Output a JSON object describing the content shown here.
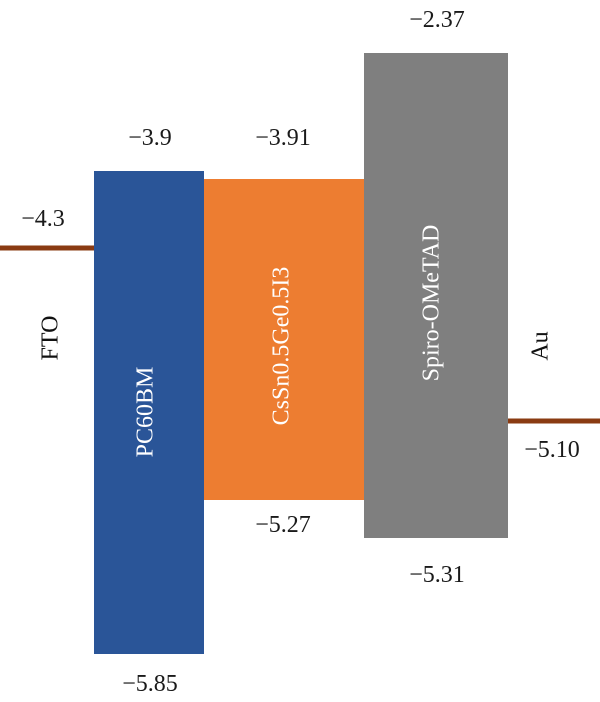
{
  "colors": {
    "electrode_line": "#8a3b12",
    "electrode_text": "#111111",
    "label_on_bar": "#ffffff"
  },
  "electrodes": [
    {
      "id": "fto",
      "name": "FTO",
      "level": "−4.3"
    },
    {
      "id": "au",
      "name": "Au",
      "level": "−5.10"
    }
  ],
  "layers": [
    {
      "id": "pc60bm",
      "name": "PC60BM",
      "color": "#2a5598",
      "top": "−3.9",
      "bottom": "−5.85"
    },
    {
      "id": "perovskite",
      "name": "CsSn0.5Ge0.5I3",
      "color": "#ed7d31",
      "top": "−3.91",
      "bottom": "−5.27"
    },
    {
      "id": "spiro",
      "name": "Spiro-OMeTAD",
      "color": "#7f7f7f",
      "top": "−2.37",
      "bottom": "−5.31"
    }
  ]
}
